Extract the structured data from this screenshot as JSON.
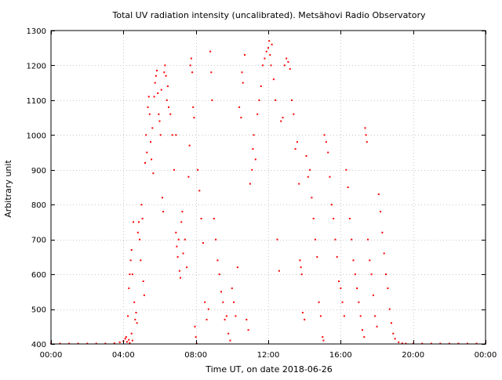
{
  "colors": {
    "background": "#ffffff",
    "series": "#ff0000",
    "grid": "#c8c8c8",
    "frame": "#000000"
  },
  "chart_data": {
    "type": "scatter",
    "title": "Total UV radiation intensity (uncalibrated). Metsähovi Radio Observatory",
    "xlabel": "Time UT, on date 2018-06-26",
    "ylabel": "Arbitrary unit",
    "xlim": [
      0,
      24
    ],
    "ylim": [
      400,
      1300
    ],
    "x_unit": "hours UT",
    "grid": true,
    "legend": "none",
    "x_ticks": [
      {
        "value": 0,
        "label": "00:00"
      },
      {
        "value": 4,
        "label": "04:00"
      },
      {
        "value": 8,
        "label": "08:00"
      },
      {
        "value": 12,
        "label": "12:00"
      },
      {
        "value": 16,
        "label": "16:00"
      },
      {
        "value": 20,
        "label": "20:00"
      },
      {
        "value": 24,
        "label": "00:00"
      }
    ],
    "y_ticks": [
      {
        "value": 400,
        "label": "400"
      },
      {
        "value": 500,
        "label": "500"
      },
      {
        "value": 600,
        "label": "600"
      },
      {
        "value": 700,
        "label": "700"
      },
      {
        "value": 800,
        "label": "800"
      },
      {
        "value": 900,
        "label": "900"
      },
      {
        "value": 1000,
        "label": "1000"
      },
      {
        "value": 1100,
        "label": "1100"
      },
      {
        "value": 1200,
        "label": "1200"
      },
      {
        "value": 1300,
        "label": "1300"
      }
    ],
    "series": [
      {
        "points": [
          [
            0.0,
            400
          ],
          [
            0.5,
            400
          ],
          [
            1.0,
            400
          ],
          [
            1.5,
            400
          ],
          [
            2.0,
            400
          ],
          [
            2.5,
            400
          ],
          [
            3.0,
            400
          ],
          [
            3.5,
            402
          ],
          [
            3.8,
            405
          ],
          [
            4.0,
            408
          ],
          [
            4.1,
            415
          ],
          [
            4.2,
            406
          ],
          [
            4.3,
            412
          ],
          [
            4.35,
            403
          ],
          [
            4.45,
            430
          ],
          [
            4.5,
            410
          ],
          [
            4.15,
            420
          ],
          [
            4.25,
            480
          ],
          [
            4.3,
            560
          ],
          [
            4.35,
            600
          ],
          [
            4.4,
            640
          ],
          [
            4.45,
            670
          ],
          [
            4.5,
            600
          ],
          [
            4.55,
            750
          ],
          [
            4.6,
            520
          ],
          [
            4.65,
            470
          ],
          [
            4.7,
            490
          ],
          [
            4.75,
            460
          ],
          [
            4.8,
            720
          ],
          [
            4.85,
            750
          ],
          [
            4.9,
            700
          ],
          [
            4.95,
            640
          ],
          [
            5.0,
            800
          ],
          [
            5.05,
            760
          ],
          [
            5.1,
            580
          ],
          [
            5.15,
            540
          ],
          [
            5.2,
            920
          ],
          [
            5.25,
            1000
          ],
          [
            5.3,
            950
          ],
          [
            5.35,
            1080
          ],
          [
            5.4,
            1110
          ],
          [
            5.45,
            1060
          ],
          [
            5.5,
            980
          ],
          [
            5.55,
            930
          ],
          [
            5.6,
            1020
          ],
          [
            5.65,
            890
          ],
          [
            5.7,
            1110
          ],
          [
            5.75,
            1150
          ],
          [
            5.8,
            1170
          ],
          [
            5.85,
            1185
          ],
          [
            5.9,
            1120
          ],
          [
            5.95,
            1060
          ],
          [
            6.0,
            1040
          ],
          [
            6.05,
            1000
          ],
          [
            6.1,
            1130
          ],
          [
            6.15,
            820
          ],
          [
            6.2,
            780
          ],
          [
            6.25,
            1180
          ],
          [
            6.3,
            1200
          ],
          [
            6.35,
            1170
          ],
          [
            6.4,
            1100
          ],
          [
            6.45,
            1140
          ],
          [
            6.5,
            1080
          ],
          [
            6.6,
            1060
          ],
          [
            6.7,
            1000
          ],
          [
            6.8,
            900
          ],
          [
            6.9,
            1000
          ],
          [
            6.9,
            720
          ],
          [
            6.95,
            680
          ],
          [
            7.0,
            650
          ],
          [
            7.05,
            700
          ],
          [
            7.1,
            610
          ],
          [
            7.15,
            590
          ],
          [
            7.2,
            750
          ],
          [
            7.25,
            780
          ],
          [
            7.3,
            660
          ],
          [
            7.4,
            700
          ],
          [
            7.5,
            620
          ],
          [
            7.6,
            880
          ],
          [
            7.65,
            970
          ],
          [
            7.7,
            1200
          ],
          [
            7.75,
            1220
          ],
          [
            7.8,
            1180
          ],
          [
            7.85,
            1080
          ],
          [
            7.9,
            1050
          ],
          [
            7.95,
            450
          ],
          [
            8.0,
            420
          ],
          [
            8.05,
            400
          ],
          [
            8.1,
            900
          ],
          [
            8.2,
            840
          ],
          [
            8.3,
            760
          ],
          [
            8.4,
            690
          ],
          [
            8.5,
            520
          ],
          [
            8.6,
            470
          ],
          [
            8.7,
            500
          ],
          [
            8.8,
            1240
          ],
          [
            8.85,
            1180
          ],
          [
            8.9,
            1100
          ],
          [
            9.0,
            760
          ],
          [
            9.1,
            700
          ],
          [
            9.2,
            640
          ],
          [
            9.3,
            600
          ],
          [
            9.4,
            550
          ],
          [
            9.5,
            520
          ],
          [
            9.6,
            470
          ],
          [
            9.7,
            480
          ],
          [
            9.8,
            430
          ],
          [
            9.9,
            410
          ],
          [
            10.0,
            560
          ],
          [
            10.1,
            520
          ],
          [
            10.2,
            480
          ],
          [
            10.3,
            620
          ],
          [
            10.4,
            1080
          ],
          [
            10.5,
            1050
          ],
          [
            10.55,
            1180
          ],
          [
            10.6,
            1150
          ],
          [
            10.7,
            1230
          ],
          [
            10.8,
            470
          ],
          [
            10.9,
            440
          ],
          [
            11.0,
            860
          ],
          [
            11.1,
            900
          ],
          [
            11.15,
            960
          ],
          [
            11.2,
            1000
          ],
          [
            11.3,
            930
          ],
          [
            11.4,
            1060
          ],
          [
            11.5,
            1100
          ],
          [
            11.6,
            1140
          ],
          [
            11.7,
            1200
          ],
          [
            11.8,
            1220
          ],
          [
            11.9,
            1240
          ],
          [
            12.0,
            1250
          ],
          [
            12.05,
            1270
          ],
          [
            12.1,
            1230
          ],
          [
            12.15,
            1200
          ],
          [
            12.2,
            1260
          ],
          [
            12.3,
            1160
          ],
          [
            12.4,
            1100
          ],
          [
            12.5,
            700
          ],
          [
            12.6,
            610
          ],
          [
            12.7,
            1040
          ],
          [
            12.8,
            1050
          ],
          [
            12.9,
            1200
          ],
          [
            13.0,
            1220
          ],
          [
            13.1,
            1210
          ],
          [
            13.2,
            1190
          ],
          [
            13.3,
            1100
          ],
          [
            13.4,
            1060
          ],
          [
            13.5,
            960
          ],
          [
            13.6,
            980
          ],
          [
            13.7,
            860
          ],
          [
            13.75,
            640
          ],
          [
            13.8,
            620
          ],
          [
            13.85,
            600
          ],
          [
            13.9,
            490
          ],
          [
            14.0,
            470
          ],
          [
            14.1,
            940
          ],
          [
            14.2,
            880
          ],
          [
            14.3,
            900
          ],
          [
            14.4,
            820
          ],
          [
            14.5,
            760
          ],
          [
            14.6,
            700
          ],
          [
            14.7,
            650
          ],
          [
            14.8,
            520
          ],
          [
            14.9,
            480
          ],
          [
            15.0,
            420
          ],
          [
            15.05,
            410
          ],
          [
            15.1,
            1000
          ],
          [
            15.2,
            980
          ],
          [
            15.3,
            950
          ],
          [
            15.4,
            880
          ],
          [
            15.5,
            800
          ],
          [
            15.6,
            760
          ],
          [
            15.7,
            700
          ],
          [
            15.8,
            650
          ],
          [
            15.9,
            580
          ],
          [
            16.0,
            560
          ],
          [
            16.1,
            520
          ],
          [
            16.2,
            480
          ],
          [
            16.3,
            900
          ],
          [
            16.4,
            850
          ],
          [
            16.5,
            760
          ],
          [
            16.6,
            700
          ],
          [
            16.7,
            640
          ],
          [
            16.8,
            600
          ],
          [
            16.9,
            560
          ],
          [
            17.0,
            520
          ],
          [
            17.1,
            480
          ],
          [
            17.2,
            440
          ],
          [
            17.3,
            420
          ],
          [
            17.35,
            1020
          ],
          [
            17.4,
            1000
          ],
          [
            17.45,
            980
          ],
          [
            17.5,
            700
          ],
          [
            17.6,
            640
          ],
          [
            17.7,
            600
          ],
          [
            17.8,
            540
          ],
          [
            17.9,
            480
          ],
          [
            18.0,
            450
          ],
          [
            18.1,
            830
          ],
          [
            18.2,
            780
          ],
          [
            18.3,
            720
          ],
          [
            18.4,
            660
          ],
          [
            18.5,
            600
          ],
          [
            18.6,
            560
          ],
          [
            18.7,
            500
          ],
          [
            18.8,
            460
          ],
          [
            18.9,
            430
          ],
          [
            19.0,
            415
          ],
          [
            19.2,
            405
          ],
          [
            19.4,
            402
          ],
          [
            19.6,
            400
          ],
          [
            20.0,
            400
          ],
          [
            20.5,
            400
          ],
          [
            21.0,
            400
          ],
          [
            21.5,
            400
          ],
          [
            22.0,
            400
          ],
          [
            22.5,
            400
          ],
          [
            23.0,
            400
          ],
          [
            23.5,
            400
          ],
          [
            24.0,
            400
          ]
        ]
      }
    ]
  }
}
